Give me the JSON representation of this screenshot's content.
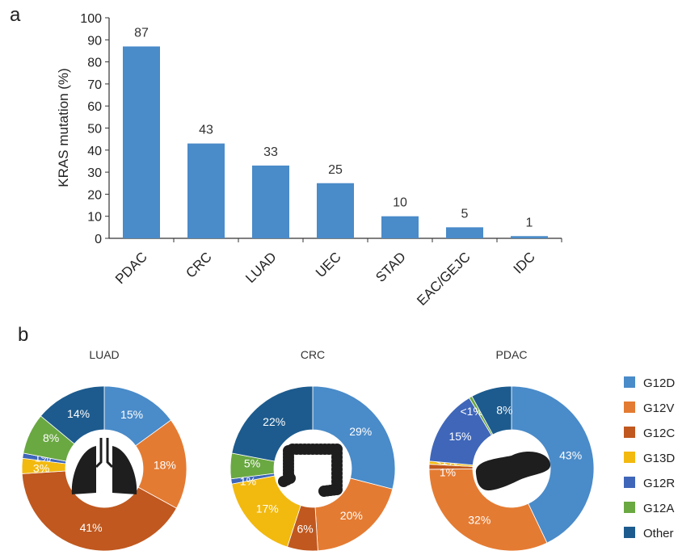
{
  "panels": {
    "a": "a",
    "b": "b"
  },
  "colors": {
    "bar": "#4a8bc9",
    "G12D": "#4a8bc9",
    "G12V": "#e47b32",
    "G12C": "#c0581f",
    "G13D": "#f2b90f",
    "G12R": "#3f66b9",
    "G12A": "#6aa842",
    "Other": "#1d5b8e"
  },
  "chart_data": [
    {
      "type": "bar",
      "ylabel": "KRAS mutation (%)",
      "ylim": [
        0,
        100
      ],
      "yticks": [
        0,
        10,
        20,
        30,
        40,
        50,
        60,
        70,
        80,
        90,
        100
      ],
      "categories": [
        "PDAC",
        "CRC",
        "LUAD",
        "UEC",
        "STAD",
        "EAC/GEJC",
        "IDC"
      ],
      "values": [
        87,
        43,
        33,
        25,
        10,
        5,
        1
      ],
      "data_labels": [
        "87",
        "43",
        "33",
        "25",
        "10",
        "5",
        "1"
      ]
    },
    {
      "type": "pie",
      "title": "LUAD",
      "icon": "lung-icon",
      "slices": [
        {
          "name": "G12D",
          "value": 15,
          "label": "15%"
        },
        {
          "name": "G12V",
          "value": 18,
          "label": "18%"
        },
        {
          "name": "G12C",
          "value": 41,
          "label": "41%"
        },
        {
          "name": "G13D",
          "value": 3,
          "label": "3%"
        },
        {
          "name": "G12R",
          "value": 1,
          "label": "1%"
        },
        {
          "name": "G12A",
          "value": 8,
          "label": "8%"
        },
        {
          "name": "Other",
          "value": 14,
          "label": "14%"
        }
      ]
    },
    {
      "type": "pie",
      "title": "CRC",
      "icon": "colon-icon",
      "slices": [
        {
          "name": "G12D",
          "value": 29,
          "label": "29%"
        },
        {
          "name": "G12V",
          "value": 20,
          "label": "20%"
        },
        {
          "name": "G12C",
          "value": 6,
          "label": "6%"
        },
        {
          "name": "G13D",
          "value": 17,
          "label": "17%"
        },
        {
          "name": "G12R",
          "value": 1,
          "label": "1%"
        },
        {
          "name": "G12A",
          "value": 5,
          "label": "5%"
        },
        {
          "name": "Other",
          "value": 22,
          "label": "22%"
        }
      ]
    },
    {
      "type": "pie",
      "title": "PDAC",
      "icon": "pancreas-icon",
      "slices": [
        {
          "name": "G12D",
          "value": 43,
          "label": "43%"
        },
        {
          "name": "G12V",
          "value": 32,
          "label": "32%"
        },
        {
          "name": "G12C",
          "value": 1,
          "label": "1%"
        },
        {
          "name": "G13D",
          "value": 0.6,
          "label": "<1%"
        },
        {
          "name": "G12R",
          "value": 15,
          "label": "15%"
        },
        {
          "name": "G12A",
          "value": 0.6,
          "label": "<1%"
        },
        {
          "name": "Other",
          "value": 8,
          "label": "8%"
        }
      ]
    }
  ],
  "legend": [
    "G12D",
    "G12V",
    "G12C",
    "G13D",
    "G12R",
    "G12A",
    "Other"
  ]
}
